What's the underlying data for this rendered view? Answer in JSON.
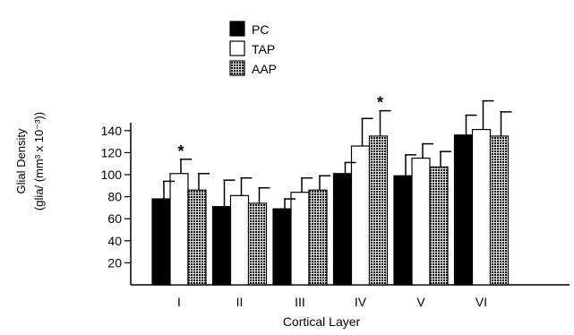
{
  "chart_data": {
    "type": "bar",
    "title": "",
    "xlabel": "Cortical Layer",
    "ylabel_line1": "Glial Density",
    "ylabel_line2": "(glia/ (mm³ x 10⁻³))",
    "ylim": [
      0,
      160
    ],
    "yticks": [
      20,
      40,
      60,
      80,
      100,
      120,
      140
    ],
    "categories": [
      "I",
      "II",
      "III",
      "IV",
      "V",
      "VI"
    ],
    "series": [
      {
        "name": "PC",
        "fill": "black",
        "values": [
          78,
          71,
          69,
          101,
          99,
          136
        ],
        "errors": [
          16,
          24,
          9,
          10,
          19,
          18
        ]
      },
      {
        "name": "TAP",
        "fill": "white",
        "values": [
          101,
          81,
          84,
          126,
          115,
          141
        ],
        "errors": [
          13,
          16,
          13,
          25,
          13,
          26
        ]
      },
      {
        "name": "AAP",
        "fill": "dotted",
        "values": [
          86,
          74,
          86,
          135,
          107,
          135
        ],
        "errors": [
          15,
          14,
          13,
          23,
          14,
          22
        ]
      }
    ],
    "significance": [
      {
        "category": "I",
        "series": "TAP",
        "label": "*"
      },
      {
        "category": "IV",
        "series": "AAP",
        "label": "*"
      }
    ],
    "legend_position": "top-center",
    "grid": false,
    "colors": {
      "dark": "#000000",
      "light": "#ffffff",
      "dot": "#9a9a9a"
    }
  }
}
